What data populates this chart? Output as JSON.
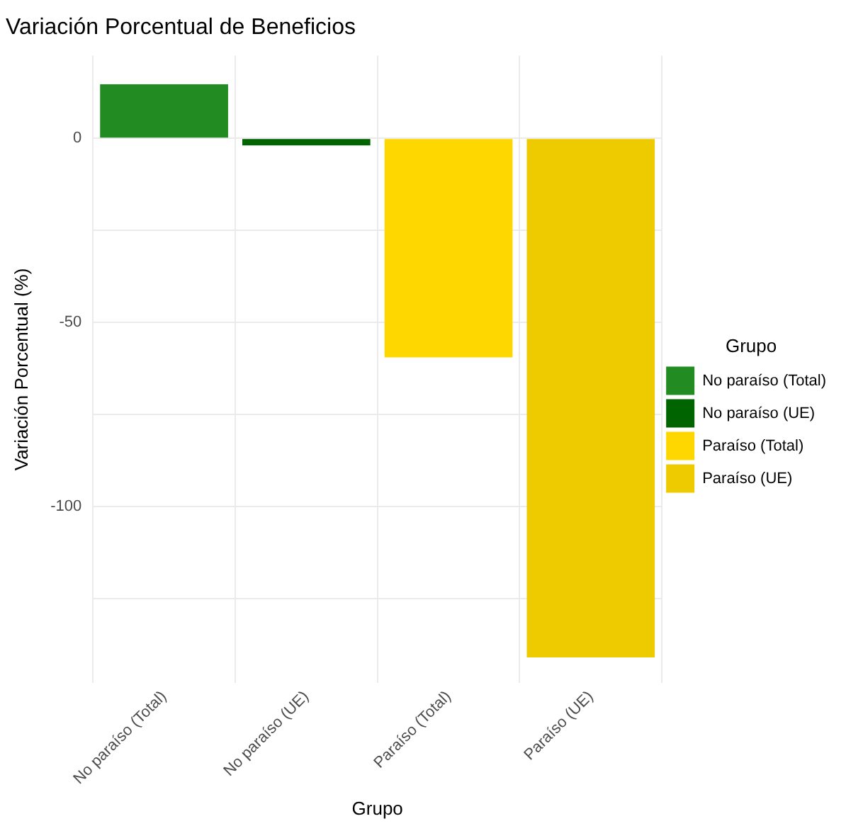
{
  "chart_data": {
    "type": "bar",
    "title": "Variación Porcentual de Beneficios",
    "xlabel": "Grupo",
    "ylabel": "Variación Porcentual (%)",
    "legend_title": "Grupo",
    "categories": [
      "No paraíso (Total)",
      "No paraíso (UE)",
      "Paraíso (Total)",
      "Paraíso (UE)"
    ],
    "series": [
      {
        "name": "No paraíso (Total)",
        "color": "#228b22",
        "values": [
          14.7,
          null,
          null,
          null
        ]
      },
      {
        "name": "No paraíso (UE)",
        "color": "#006400",
        "values": [
          null,
          -1.9,
          null,
          null
        ]
      },
      {
        "name": "Paraíso (Total)",
        "color": "#ffd700",
        "values": [
          null,
          null,
          -59.5,
          null
        ]
      },
      {
        "name": "Paraíso (UE)",
        "color": "#eecb00",
        "values": [
          null,
          null,
          null,
          -141
        ]
      }
    ],
    "ylim": [
      -148,
      22.5
    ],
    "yticks": [
      {
        "value": -125,
        "label": null
      },
      -100,
      {
        "value": -75,
        "label": null
      },
      -50,
      {
        "value": -25,
        "label": null
      },
      0
    ],
    "grid": true,
    "legend": "right"
  }
}
